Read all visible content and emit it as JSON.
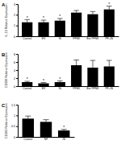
{
  "chart_data": [
    {
      "type": "bar",
      "title": "A",
      "y_label": "IL-10 Relative Expression",
      "categories": [
        "Control",
        "EV",
        "Ni",
        "PFNK",
        "Ext PFNK",
        "PF+Ni"
      ],
      "values": [
        1.3,
        1.3,
        1.45,
        2.2,
        2.05,
        2.5
      ],
      "errors": [
        0.25,
        0.2,
        0.2,
        0.2,
        0.25,
        0.3
      ],
      "annotations": [
        "*",
        "*",
        "*",
        null,
        null,
        "*"
      ],
      "color": "#000000",
      "ylim": [
        0,
        3
      ],
      "yticks": [
        0,
        1,
        2,
        3
      ]
    },
    {
      "type": "bar",
      "title": "B",
      "y_label": "CD206 Relative Expression",
      "categories": [
        "Control",
        "EV",
        "Ni",
        "PFNK",
        "Ext PFNK",
        "PF+Ni"
      ],
      "values": [
        1,
        0.7,
        1,
        5.2,
        4.6,
        4.9
      ],
      "errors": [
        0.2,
        0.2,
        0.3,
        1.3,
        1.8,
        1.5
      ],
      "annotations": [
        "*",
        "*",
        "*",
        null,
        null,
        null
      ],
      "color": "#000000",
      "ylim": [
        0,
        8
      ],
      "yticks": [
        0,
        2,
        4,
        6,
        8
      ]
    },
    {
      "type": "bar",
      "title": "C",
      "y_label": "CD163 Relative Expression",
      "categories": [
        "Control",
        "NF",
        "IN"
      ],
      "values": [
        0.85,
        0.7,
        0.3
      ],
      "errors": [
        0.12,
        0.1,
        0.05
      ],
      "annotations": [
        null,
        null,
        "*"
      ],
      "color": "#000000",
      "ylim": [
        0,
        1.5
      ],
      "yticks": [
        0,
        0.5,
        1,
        1.5
      ]
    }
  ]
}
